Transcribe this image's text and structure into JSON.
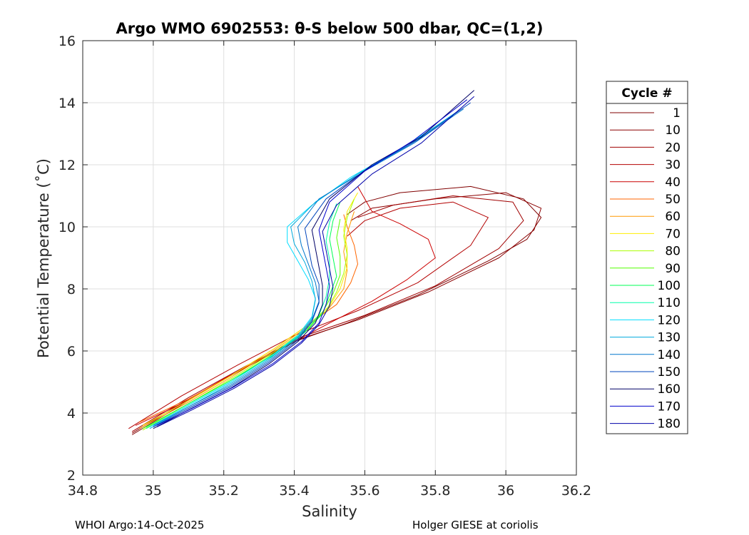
{
  "chart_data": {
    "type": "line",
    "title": "Argo WMO 6902553: θ-S below 500 dbar,  QC=(1,2)",
    "xlabel": "Salinity",
    "ylabel": "Potential Temperature (˚C)",
    "xlim": [
      34.8,
      36.2
    ],
    "ylim": [
      2,
      16
    ],
    "xticks": [
      34.8,
      35,
      35.2,
      35.4,
      35.6,
      35.8,
      36,
      36.2
    ],
    "xtick_labels": [
      "34.8",
      "35",
      "35.2",
      "35.4",
      "35.6",
      "35.8",
      "36",
      "36.2"
    ],
    "yticks": [
      2,
      4,
      6,
      8,
      10,
      12,
      14,
      16
    ],
    "ytick_labels": [
      "2",
      "4",
      "6",
      "8",
      "10",
      "12",
      "14",
      "16"
    ],
    "grid": true,
    "legend_title": "Cycle #",
    "legend_position": "right",
    "series": [
      {
        "name": "1",
        "color": "#800000",
        "points": [
          [
            34.94,
            3.3
          ],
          [
            35.1,
            4.4
          ],
          [
            35.25,
            5.4
          ],
          [
            35.4,
            6.3
          ],
          [
            35.55,
            6.9
          ],
          [
            35.75,
            7.8
          ],
          [
            35.95,
            8.9
          ],
          [
            36.06,
            9.6
          ],
          [
            36.1,
            10.3
          ],
          [
            36.05,
            10.9
          ],
          [
            35.9,
            11.3
          ],
          [
            35.7,
            11.1
          ],
          [
            35.6,
            10.8
          ],
          [
            35.55,
            10.4
          ]
        ]
      },
      {
        "name": "10",
        "color": "#8b0000",
        "points": [
          [
            34.94,
            3.35
          ],
          [
            35.1,
            4.45
          ],
          [
            35.26,
            5.45
          ],
          [
            35.42,
            6.4
          ],
          [
            35.58,
            7.0
          ],
          [
            35.78,
            7.9
          ],
          [
            35.98,
            9.0
          ],
          [
            36.08,
            9.9
          ],
          [
            36.1,
            10.6
          ],
          [
            36.0,
            11.1
          ],
          [
            35.8,
            10.9
          ],
          [
            35.62,
            10.6
          ],
          [
            35.56,
            10.2
          ]
        ]
      },
      {
        "name": "20",
        "color": "#a00000",
        "points": [
          [
            34.94,
            3.4
          ],
          [
            35.1,
            4.5
          ],
          [
            35.26,
            5.5
          ],
          [
            35.42,
            6.45
          ],
          [
            35.6,
            7.15
          ],
          [
            35.8,
            8.1
          ],
          [
            35.98,
            9.3
          ],
          [
            36.05,
            10.2
          ],
          [
            36.02,
            10.8
          ],
          [
            35.85,
            11.0
          ],
          [
            35.68,
            10.7
          ],
          [
            35.58,
            10.3
          ]
        ]
      },
      {
        "name": "30",
        "color": "#b30000",
        "points": [
          [
            34.93,
            3.5
          ],
          [
            35.08,
            4.55
          ],
          [
            35.24,
            5.55
          ],
          [
            35.4,
            6.5
          ],
          [
            35.58,
            7.3
          ],
          [
            35.75,
            8.2
          ],
          [
            35.9,
            9.4
          ],
          [
            35.95,
            10.3
          ],
          [
            35.85,
            10.8
          ],
          [
            35.7,
            10.6
          ],
          [
            35.6,
            10.2
          ],
          [
            35.55,
            9.7
          ]
        ]
      },
      {
        "name": "40",
        "color": "#cc0000",
        "points": [
          [
            34.95,
            3.6
          ],
          [
            35.08,
            4.3
          ],
          [
            35.2,
            5.1
          ],
          [
            35.35,
            6.0
          ],
          [
            35.5,
            6.9
          ],
          [
            35.62,
            7.6
          ],
          [
            35.72,
            8.3
          ],
          [
            35.8,
            9.0
          ],
          [
            35.78,
            9.6
          ],
          [
            35.7,
            10.1
          ],
          [
            35.62,
            10.5
          ],
          [
            35.6,
            10.9
          ],
          [
            35.58,
            11.3
          ]
        ]
      },
      {
        "name": "50",
        "color": "#ff6600",
        "points": [
          [
            34.96,
            3.7
          ],
          [
            35.1,
            4.45
          ],
          [
            35.22,
            5.2
          ],
          [
            35.34,
            6.05
          ],
          [
            35.44,
            6.85
          ],
          [
            35.52,
            7.5
          ],
          [
            35.56,
            8.2
          ],
          [
            35.58,
            8.8
          ],
          [
            35.57,
            9.4
          ],
          [
            35.55,
            10.0
          ],
          [
            35.54,
            10.4
          ]
        ]
      },
      {
        "name": "60",
        "color": "#ff9900",
        "points": [
          [
            34.96,
            3.5
          ],
          [
            35.1,
            4.35
          ],
          [
            35.22,
            5.15
          ],
          [
            35.34,
            6.0
          ],
          [
            35.44,
            6.8
          ],
          [
            35.5,
            7.4
          ],
          [
            35.54,
            8.0
          ],
          [
            35.55,
            8.6
          ],
          [
            35.54,
            9.2
          ],
          [
            35.55,
            9.8
          ],
          [
            35.57,
            10.5
          ]
        ]
      },
      {
        "name": "70",
        "color": "#ffee00",
        "points": [
          [
            34.97,
            3.6
          ],
          [
            35.1,
            4.4
          ],
          [
            35.22,
            5.2
          ],
          [
            35.34,
            6.05
          ],
          [
            35.44,
            6.85
          ],
          [
            35.5,
            7.45
          ],
          [
            35.53,
            8.0
          ],
          [
            35.55,
            8.7
          ],
          [
            35.55,
            9.3
          ],
          [
            35.54,
            9.9
          ],
          [
            35.55,
            10.5
          ],
          [
            35.58,
            11.1
          ]
        ]
      },
      {
        "name": "80",
        "color": "#aaff00",
        "points": [
          [
            34.97,
            3.45
          ],
          [
            35.1,
            4.3
          ],
          [
            35.22,
            5.1
          ],
          [
            35.34,
            5.95
          ],
          [
            35.44,
            6.75
          ],
          [
            35.49,
            7.3
          ],
          [
            35.52,
            7.9
          ],
          [
            35.54,
            8.5
          ],
          [
            35.55,
            9.1
          ],
          [
            35.54,
            9.7
          ],
          [
            35.55,
            10.3
          ],
          [
            35.57,
            10.9
          ]
        ]
      },
      {
        "name": "90",
        "color": "#55ff00",
        "points": [
          [
            34.97,
            3.5
          ],
          [
            35.1,
            4.3
          ],
          [
            35.22,
            5.05
          ],
          [
            35.34,
            5.9
          ],
          [
            35.44,
            6.7
          ],
          [
            35.48,
            7.25
          ],
          [
            35.51,
            7.85
          ],
          [
            35.53,
            8.45
          ],
          [
            35.53,
            9.05
          ],
          [
            35.52,
            9.65
          ],
          [
            35.53,
            10.25
          ]
        ]
      },
      {
        "name": "100",
        "color": "#00ff55",
        "points": [
          [
            34.98,
            3.55
          ],
          [
            35.1,
            4.3
          ],
          [
            35.22,
            5.05
          ],
          [
            35.34,
            5.85
          ],
          [
            35.43,
            6.6
          ],
          [
            35.48,
            7.2
          ],
          [
            35.5,
            7.8
          ],
          [
            35.52,
            8.4
          ],
          [
            35.51,
            9.0
          ],
          [
            35.5,
            9.6
          ],
          [
            35.51,
            10.2
          ],
          [
            35.53,
            10.8
          ]
        ]
      },
      {
        "name": "110",
        "color": "#00ffaa",
        "points": [
          [
            34.98,
            3.5
          ],
          [
            35.1,
            4.25
          ],
          [
            35.22,
            5.0
          ],
          [
            35.33,
            5.8
          ],
          [
            35.42,
            6.55
          ],
          [
            35.47,
            7.15
          ],
          [
            35.49,
            7.75
          ],
          [
            35.5,
            8.35
          ],
          [
            35.5,
            8.95
          ],
          [
            35.49,
            9.55
          ],
          [
            35.5,
            10.15
          ],
          [
            35.52,
            10.75
          ]
        ]
      },
      {
        "name": "120",
        "color": "#00ddff",
        "points": [
          [
            34.99,
            3.55
          ],
          [
            35.1,
            4.25
          ],
          [
            35.22,
            5.0
          ],
          [
            35.33,
            5.8
          ],
          [
            35.41,
            6.5
          ],
          [
            35.45,
            7.1
          ],
          [
            35.46,
            7.7
          ],
          [
            35.44,
            8.3
          ],
          [
            35.41,
            8.9
          ],
          [
            35.38,
            9.5
          ],
          [
            35.38,
            10.0
          ],
          [
            35.45,
            10.7
          ],
          [
            35.56,
            11.6
          ],
          [
            35.7,
            12.5
          ],
          [
            35.85,
            13.6
          ]
        ]
      },
      {
        "name": "130",
        "color": "#00aadd",
        "points": [
          [
            34.99,
            3.5
          ],
          [
            35.1,
            4.2
          ],
          [
            35.22,
            4.95
          ],
          [
            35.33,
            5.75
          ],
          [
            35.41,
            6.45
          ],
          [
            35.45,
            7.05
          ],
          [
            35.46,
            7.65
          ],
          [
            35.45,
            8.25
          ],
          [
            35.43,
            8.85
          ],
          [
            35.4,
            9.45
          ],
          [
            35.39,
            10.0
          ],
          [
            35.46,
            10.8
          ],
          [
            35.58,
            11.7
          ],
          [
            35.72,
            12.6
          ],
          [
            35.86,
            13.7
          ]
        ]
      },
      {
        "name": "140",
        "color": "#0077cc",
        "points": [
          [
            35.0,
            3.6
          ],
          [
            35.1,
            4.2
          ],
          [
            35.22,
            4.9
          ],
          [
            35.33,
            5.7
          ],
          [
            35.41,
            6.4
          ],
          [
            35.45,
            7.0
          ],
          [
            35.47,
            7.6
          ],
          [
            35.46,
            8.2
          ],
          [
            35.44,
            8.8
          ],
          [
            35.42,
            9.4
          ],
          [
            35.41,
            10.0
          ],
          [
            35.47,
            10.9
          ],
          [
            35.6,
            11.8
          ],
          [
            35.74,
            12.7
          ],
          [
            35.88,
            13.8
          ]
        ]
      },
      {
        "name": "150",
        "color": "#0044bb",
        "points": [
          [
            35.0,
            3.55
          ],
          [
            35.1,
            4.15
          ],
          [
            35.22,
            4.85
          ],
          [
            35.33,
            5.65
          ],
          [
            35.41,
            6.35
          ],
          [
            35.45,
            6.95
          ],
          [
            35.47,
            7.55
          ],
          [
            35.47,
            8.15
          ],
          [
            35.45,
            8.75
          ],
          [
            35.44,
            9.35
          ],
          [
            35.43,
            9.95
          ],
          [
            35.49,
            10.9
          ],
          [
            35.61,
            11.9
          ],
          [
            35.75,
            12.8
          ],
          [
            35.9,
            14.0
          ]
        ]
      },
      {
        "name": "160",
        "color": "#000066",
        "points": [
          [
            35.0,
            3.5
          ],
          [
            35.1,
            4.1
          ],
          [
            35.22,
            4.8
          ],
          [
            35.33,
            5.6
          ],
          [
            35.41,
            6.3
          ],
          [
            35.46,
            6.9
          ],
          [
            35.48,
            7.5
          ],
          [
            35.48,
            8.1
          ],
          [
            35.47,
            8.7
          ],
          [
            35.46,
            9.3
          ],
          [
            35.45,
            9.9
          ],
          [
            35.5,
            10.9
          ],
          [
            35.62,
            12.0
          ],
          [
            35.76,
            12.9
          ],
          [
            35.91,
            14.4
          ]
        ]
      },
      {
        "name": "170",
        "color": "#0000cc",
        "points": [
          [
            35.01,
            3.6
          ],
          [
            35.11,
            4.15
          ],
          [
            35.23,
            4.85
          ],
          [
            35.34,
            5.6
          ],
          [
            35.42,
            6.3
          ],
          [
            35.47,
            6.9
          ],
          [
            35.49,
            7.5
          ],
          [
            35.5,
            8.1
          ],
          [
            35.49,
            8.7
          ],
          [
            35.48,
            9.3
          ],
          [
            35.47,
            9.9
          ],
          [
            35.5,
            10.8
          ],
          [
            35.6,
            11.8
          ],
          [
            35.74,
            12.8
          ],
          [
            35.89,
            14.1
          ]
        ]
      },
      {
        "name": "180",
        "color": "#0000aa",
        "points": [
          [
            35.01,
            3.55
          ],
          [
            35.11,
            4.1
          ],
          [
            35.23,
            4.8
          ],
          [
            35.34,
            5.55
          ],
          [
            35.42,
            6.25
          ],
          [
            35.47,
            6.85
          ],
          [
            35.5,
            7.45
          ],
          [
            35.51,
            8.05
          ],
          [
            35.5,
            8.65
          ],
          [
            35.49,
            9.25
          ],
          [
            35.48,
            9.85
          ],
          [
            35.52,
            10.7
          ],
          [
            35.62,
            11.7
          ],
          [
            35.76,
            12.7
          ],
          [
            35.91,
            14.2
          ]
        ]
      }
    ]
  },
  "footer": {
    "left": "WHOI Argo:14-Oct-2025",
    "right": "Holger GIESE at coriolis"
  }
}
